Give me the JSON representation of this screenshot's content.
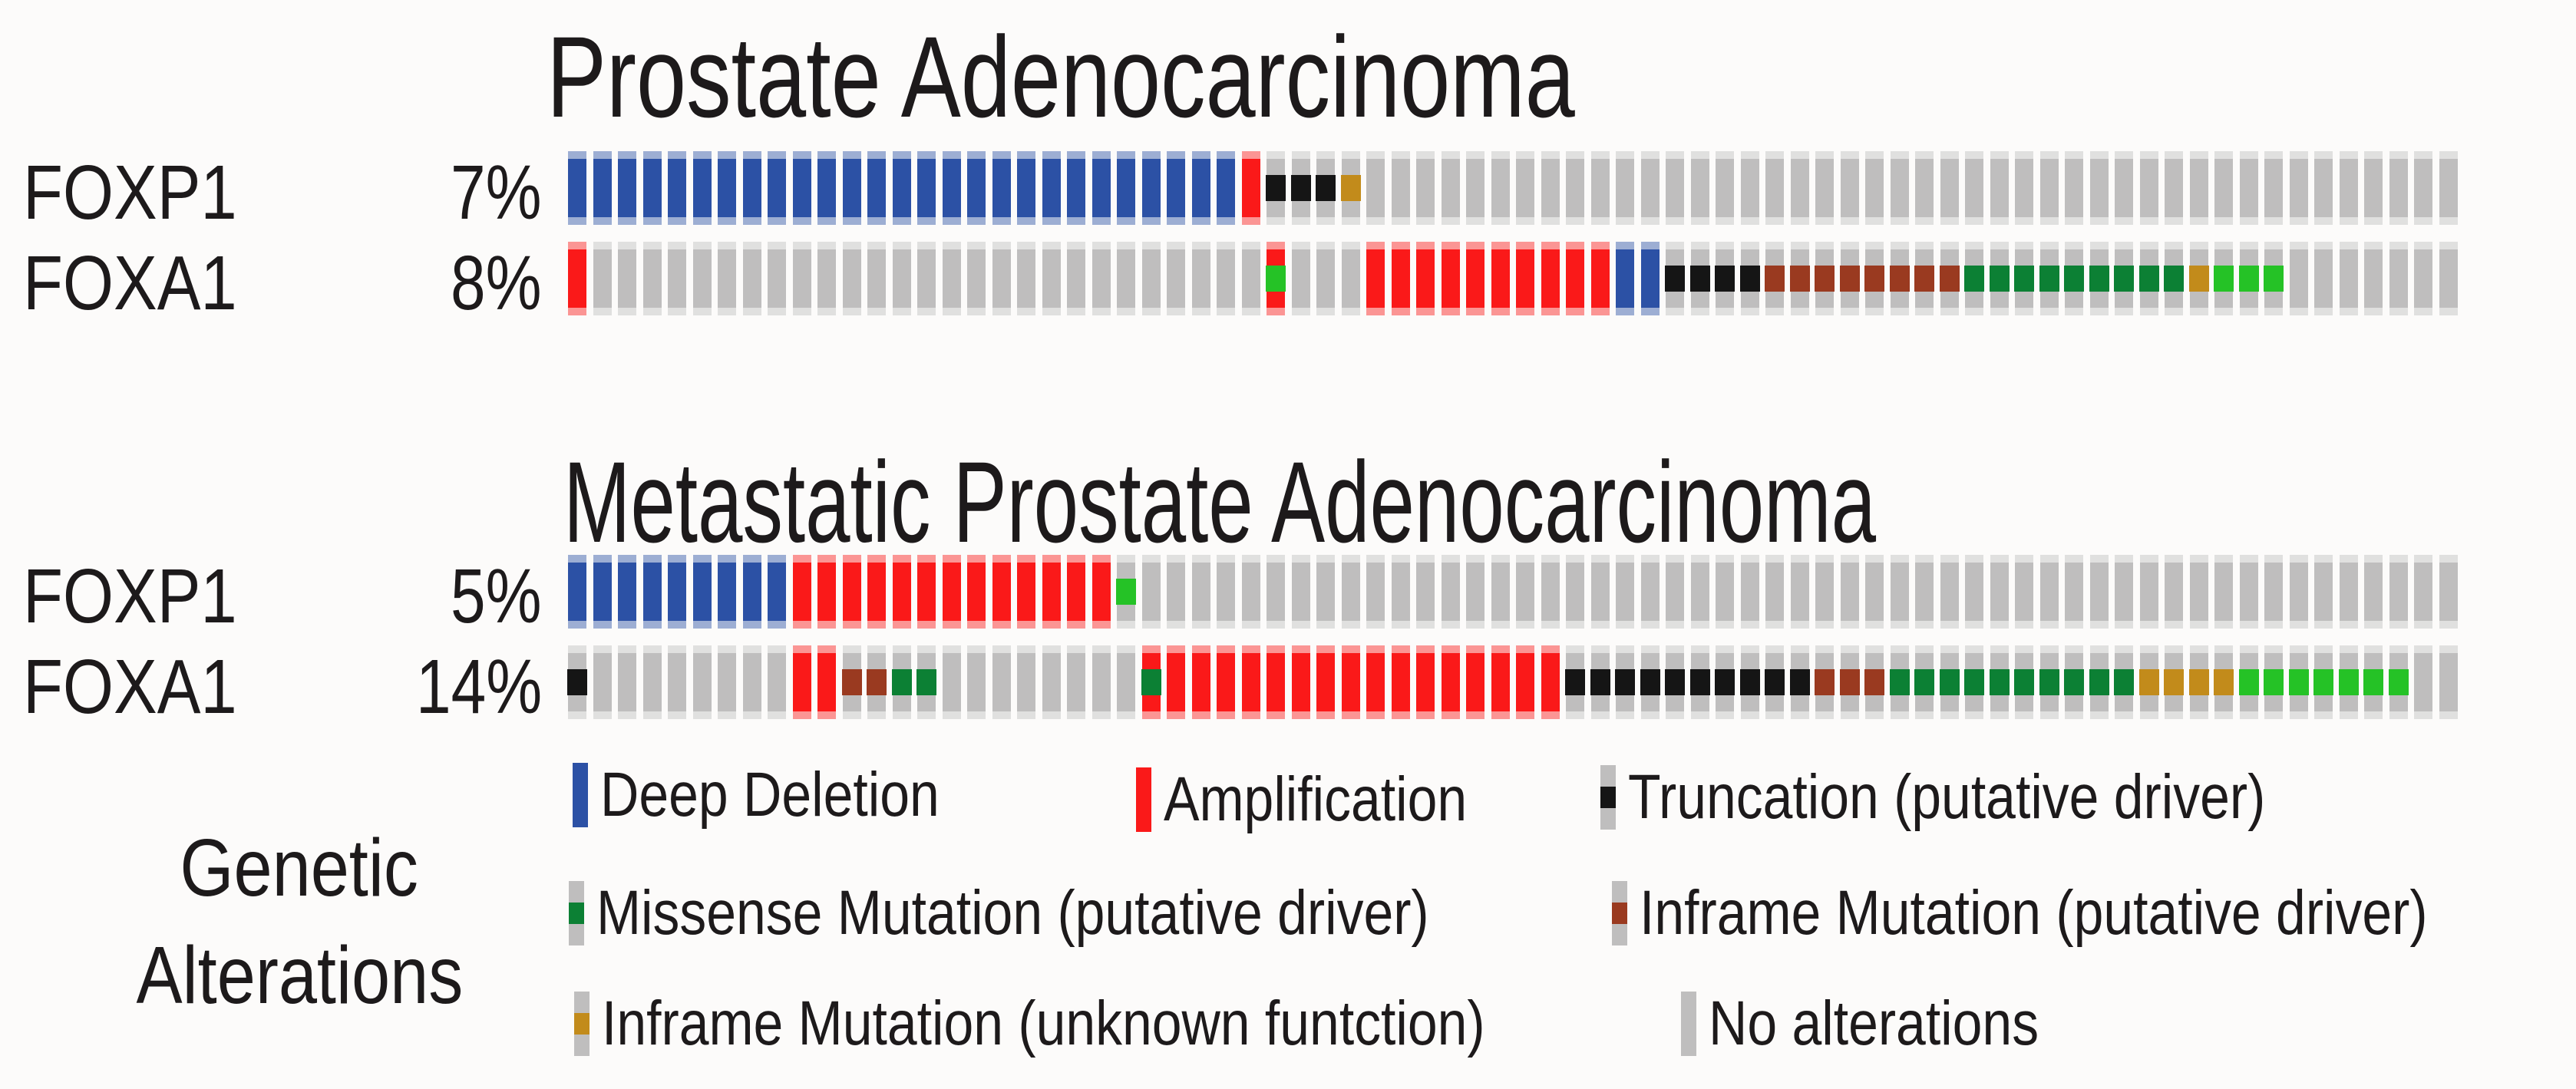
{
  "figure": {
    "description_text": "",
    "panels": [
      {
        "title": "Prostate Adenocarcinoma",
        "rows": [
          {
            "gene": "FOXP1",
            "percent": "7%"
          },
          {
            "gene": "FOXA1",
            "percent": "8%"
          }
        ]
      },
      {
        "title": "Metastatic Prostate Adenocarcinoma",
        "rows": [
          {
            "gene": "FOXP1",
            "percent": "5%"
          },
          {
            "gene": "FOXA1",
            "percent": "14%"
          }
        ]
      }
    ]
  },
  "legend": {
    "title_line1": "Genetic",
    "title_line2": "Alterations",
    "items": [
      {
        "type": "deep_deletion",
        "label": "Deep Deletion"
      },
      {
        "type": "amplification",
        "label": "Amplification"
      },
      {
        "type": "truncation",
        "label": "Truncation (putative driver)"
      },
      {
        "type": "missense_driver",
        "label": "Missense Mutation (putative driver)"
      },
      {
        "type": "inframe_driver",
        "label": "Inframe Mutation (putative driver)"
      },
      {
        "type": "inframe_unknown",
        "label": "Inframe Mutation (unknown funtction)"
      },
      {
        "type": "no_alteration",
        "label": "No alterations"
      }
    ]
  },
  "alteration_styles": {
    "deep_deletion": {
      "bar": "#2c51a5"
    },
    "amplification": {
      "bar": "#fa1919"
    },
    "no_alteration": {
      "bar": "#bfbebe"
    },
    "truncation": {
      "bar": "#bfbebe",
      "mark": "#151515"
    },
    "missense_driver": {
      "bar": "#bfbebe",
      "mark": "#0c8034"
    },
    "missense_light": {
      "bar": "#bfbebe",
      "mark": "#25c226"
    },
    "inframe_driver": {
      "bar": "#bfbebe",
      "mark": "#9a3a20"
    },
    "inframe_unknown": {
      "bar": "#bfbebe",
      "mark": "#c28b1b"
    },
    "amp_missense_driver": {
      "bar": "#fa1919",
      "mark": "#0c8034"
    },
    "amp_missense_light": {
      "bar": "#fa1919",
      "mark": "#25c226"
    }
  },
  "chart_data": {
    "type": "heatmap",
    "subtype": "oncoprint",
    "titles": [
      "Prostate Adenocarcinoma",
      "Metastatic Prostate Adenocarcinoma"
    ],
    "samples_per_row": 76,
    "rows_meta": [
      {
        "panel": "Prostate Adenocarcinoma",
        "gene": "FOXP1",
        "alteration_frequency": "7%",
        "track": "p1_foxp1"
      },
      {
        "panel": "Prostate Adenocarcinoma",
        "gene": "FOXA1",
        "alteration_frequency": "8%",
        "track": "p1_foxa1"
      },
      {
        "panel": "Metastatic Prostate Adenocarcinoma",
        "gene": "FOXP1",
        "alteration_frequency": "5%",
        "track": "p2_foxp1"
      },
      {
        "panel": "Metastatic Prostate Adenocarcinoma",
        "gene": "FOXA1",
        "alteration_frequency": "14%",
        "track": "p2_foxa1"
      }
    ],
    "tracks": {
      "p1_foxp1": [
        [
          "deep_deletion",
          27
        ],
        [
          "amplification",
          1
        ],
        [
          "truncation",
          3
        ],
        [
          "inframe_unknown",
          1
        ],
        [
          "no_alteration",
          44
        ]
      ],
      "p1_foxa1": [
        [
          "amplification",
          1
        ],
        [
          "no_alteration",
          27
        ],
        [
          "amp_missense_light",
          1
        ],
        [
          "no_alteration",
          3
        ],
        [
          "amplification",
          10
        ],
        [
          "deep_deletion",
          2
        ],
        [
          "truncation",
          4
        ],
        [
          "inframe_driver",
          8
        ],
        [
          "missense_driver",
          9
        ],
        [
          "inframe_unknown",
          1
        ],
        [
          "missense_light",
          3
        ],
        [
          "no_alteration",
          7
        ]
      ],
      "p2_foxp1": [
        [
          "deep_deletion",
          9
        ],
        [
          "amplification",
          13
        ],
        [
          "missense_light",
          1
        ],
        [
          "no_alteration",
          53
        ]
      ],
      "p2_foxa1": [
        [
          "truncation",
          1
        ],
        [
          "no_alteration",
          8
        ],
        [
          "amplification",
          2
        ],
        [
          "inframe_driver",
          2
        ],
        [
          "missense_driver",
          2
        ],
        [
          "no_alteration",
          8
        ],
        [
          "amp_missense_driver",
          1
        ],
        [
          "amplification",
          16
        ],
        [
          "truncation",
          10
        ],
        [
          "inframe_driver",
          3
        ],
        [
          "missense_driver",
          10
        ],
        [
          "inframe_unknown",
          4
        ],
        [
          "missense_light",
          7
        ],
        [
          "no_alteration",
          2
        ]
      ]
    },
    "legend_position": "bottom"
  }
}
